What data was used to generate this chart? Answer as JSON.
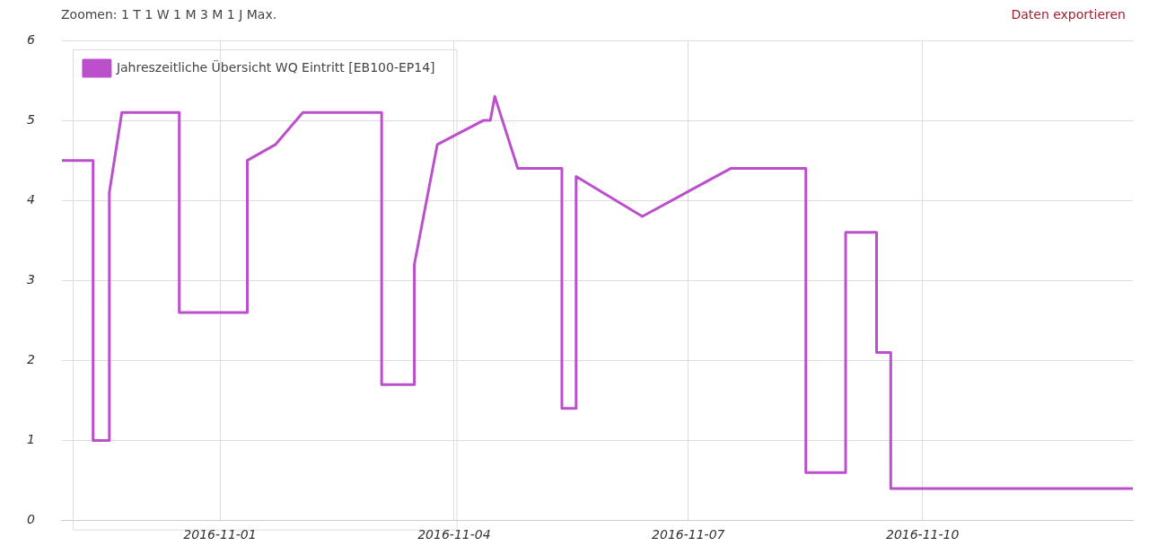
{
  "chart_data": {
    "type": "line",
    "annotations": [
      "Zoomen: 1 T 1 W 1 M 3 M 1 J Max.",
      "Daten exportieren"
    ],
    "x": [
      "2016-10-29T23:24",
      "2016-10-30T09:00",
      "2016-10-30T09:00",
      "2016-10-30T14:00",
      "2016-10-30T14:00",
      "2016-10-30T17:50",
      "2016-10-31T11:30",
      "2016-10-31T11:30",
      "2016-11-01T08:25",
      "2016-11-01T08:25",
      "2016-11-01T17:07",
      "2016-11-02T01:30",
      "2016-11-03T01:43",
      "2016-11-03T01:43",
      "2016-11-03T11:46",
      "2016-11-03T11:46",
      "2016-11-03T18:50",
      "2016-11-04T09:00",
      "2016-11-04T11:08",
      "2016-11-04T12:30",
      "2016-11-04T19:34",
      "2016-11-05T09:08",
      "2016-11-05T09:08",
      "2016-11-05T13:30",
      "2016-11-05T13:30",
      "2016-11-06T09:52",
      "2016-11-07T13:00",
      "2016-11-08T12:08",
      "2016-11-08T12:08",
      "2016-11-09T00:22",
      "2016-11-09T00:22",
      "2016-11-09T09:52",
      "2016-11-09T09:52",
      "2016-11-09T14:14",
      "2016-11-09T14:14",
      "2016-11-12T16:40"
    ],
    "series": [
      {
        "name": "Jahreszeitliche Übersicht WQ Eintritt [EB100-EP14]",
        "color": "#bb4fcc",
        "values": [
          4.5,
          4.5,
          1.0,
          1.0,
          4.1,
          5.1,
          5.1,
          2.6,
          2.6,
          4.5,
          4.7,
          5.1,
          5.1,
          1.7,
          1.7,
          3.2,
          4.7,
          5.0,
          5.0,
          5.3,
          4.4,
          4.4,
          1.4,
          1.4,
          4.3,
          3.8,
          4.4,
          4.4,
          0.6,
          0.6,
          3.6,
          3.6,
          2.1,
          2.1,
          0.4,
          0.4
        ]
      }
    ],
    "xlim": [
      "2016-10-29T23:24",
      "2016-11-12T16:40"
    ],
    "xticks": [
      "2016-11-01",
      "2016-11-04",
      "2016-11-07",
      "2016-11-10"
    ],
    "ylim": [
      0,
      6
    ],
    "yticks": [
      0,
      1,
      2,
      3,
      4,
      5,
      6
    ],
    "grid": true,
    "legend": "top left",
    "marker": "none",
    "line_style": "solid"
  }
}
